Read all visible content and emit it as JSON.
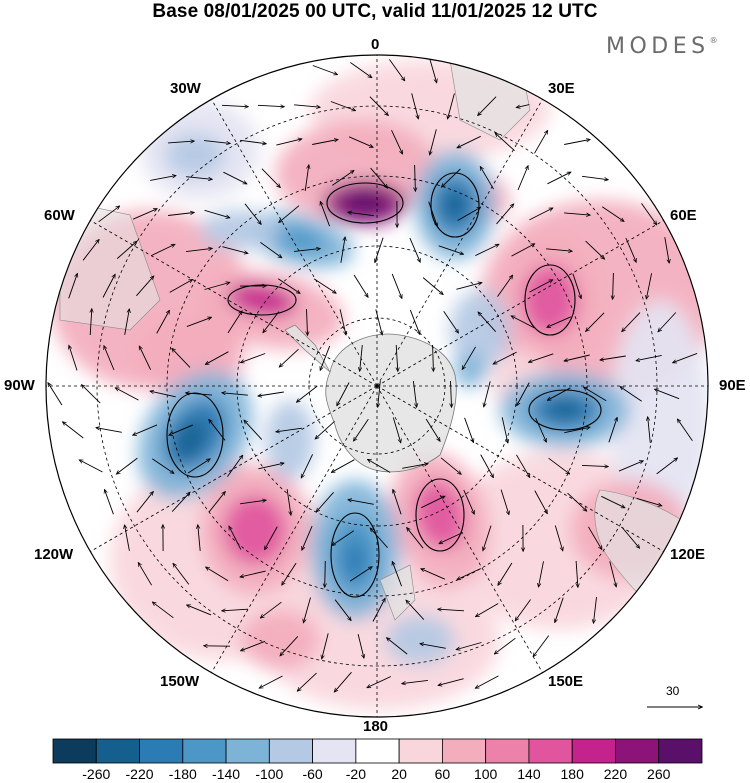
{
  "title": "Base 08/01/2025 00 UTC, valid 11/01/2025 12 UTC",
  "brand": "MODES",
  "brand_mark": "®",
  "longitude_labels": {
    "l0": "0",
    "l30e": "30E",
    "l60e": "60E",
    "l90e": "90E",
    "l120e": "120E",
    "l150e": "150E",
    "l180": "180",
    "l150w": "150W",
    "l120w": "120W",
    "l90w": "90W",
    "l60w": "60W",
    "l30w": "30W"
  },
  "vector_scale_label": "30",
  "colorbar": {
    "ticks": [
      "-260",
      "-220",
      "-180",
      "-140",
      "-100",
      "-60",
      "-20",
      "20",
      "60",
      "100",
      "140",
      "180",
      "220",
      "260"
    ],
    "colors": [
      "#0d3b5e",
      "#155f8f",
      "#2b7bb4",
      "#4c97c8",
      "#7eb3d8",
      "#b4c9e4",
      "#e4e4f2",
      "#ffffff",
      "#f8d6dc",
      "#f3adbd",
      "#ec82a9",
      "#e0559e",
      "#c4228d",
      "#8c1479",
      "#5a0f6a"
    ]
  },
  "colors": {
    "land": "#e3e3e3",
    "grid": "#000000"
  }
}
